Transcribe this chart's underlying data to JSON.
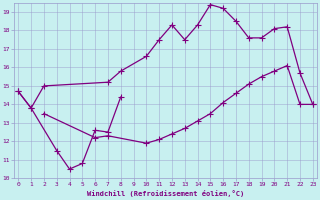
{
  "line1_x": [
    0,
    1,
    2,
    7,
    8,
    10,
    11,
    12,
    13,
    14,
    15,
    16,
    17,
    18,
    19,
    20,
    21,
    22,
    23
  ],
  "line1_y": [
    14.7,
    13.8,
    15.0,
    15.2,
    15.8,
    16.6,
    17.5,
    18.3,
    17.5,
    18.3,
    19.4,
    19.2,
    18.5,
    17.6,
    17.6,
    18.1,
    18.2,
    15.7,
    14.0
  ],
  "line2_x": [
    0,
    1,
    3,
    4,
    5,
    6,
    7,
    8
  ],
  "line2_y": [
    14.7,
    13.8,
    11.5,
    10.5,
    10.8,
    12.6,
    12.5,
    14.4
  ],
  "line3_x": [
    2,
    6,
    7,
    10,
    11,
    12,
    13,
    14,
    15,
    16,
    17,
    18,
    19,
    20,
    21,
    22,
    23
  ],
  "line3_y": [
    13.5,
    12.2,
    12.3,
    11.9,
    12.1,
    12.4,
    12.7,
    13.1,
    13.5,
    14.1,
    14.6,
    15.1,
    15.5,
    15.8,
    16.1,
    14.0,
    14.0
  ],
  "color": "#800080",
  "bg_color": "#c8f0f0",
  "grid_color": "#9999cc",
  "xlabel": "Windchill (Refroidissement éolien,°C)",
  "xlim": [
    0,
    23
  ],
  "ylim": [
    10,
    19.5
  ],
  "xticks": [
    0,
    1,
    2,
    3,
    4,
    5,
    6,
    7,
    8,
    9,
    10,
    11,
    12,
    13,
    14,
    15,
    16,
    17,
    18,
    19,
    20,
    21,
    22,
    23
  ],
  "yticks": [
    10,
    11,
    12,
    13,
    14,
    15,
    16,
    17,
    18,
    19
  ],
  "label_color": "#800080",
  "linewidth": 0.9,
  "markersize": 4,
  "markeredgewidth": 0.8
}
